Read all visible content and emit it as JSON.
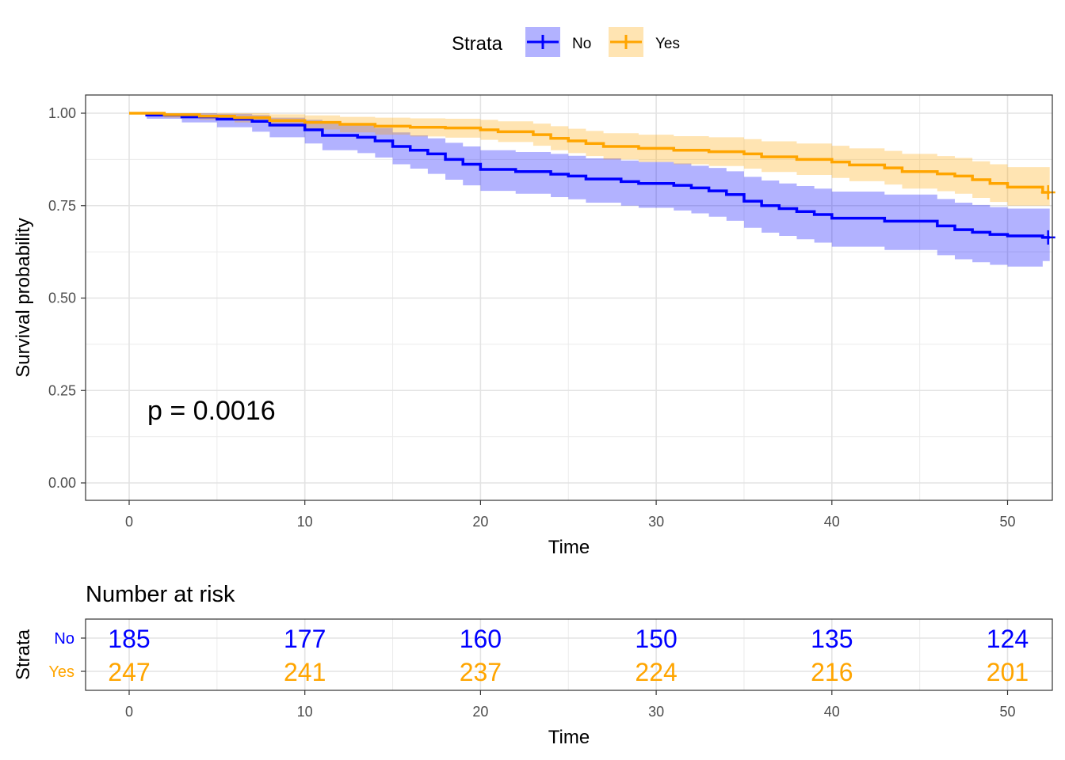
{
  "legend": {
    "title": "Strata",
    "items": [
      {
        "label": "No",
        "color": "#0000FF"
      },
      {
        "label": "Yes",
        "color": "#FFA500"
      }
    ]
  },
  "chart_data": [
    {
      "type": "line",
      "subtype": "kaplan-meier",
      "xlabel": "Time",
      "ylabel": "Survival probability",
      "xlim": [
        0,
        52
      ],
      "ylim": [
        0,
        1
      ],
      "xticks": [
        0,
        10,
        20,
        30,
        40,
        50
      ],
      "yticks": [
        "0.00",
        "0.25",
        "0.50",
        "0.75",
        "1.00"
      ],
      "grid": true,
      "annotation": "p = 0.0016",
      "series": [
        {
          "name": "No",
          "color": "#0000FF",
          "fill": "#0000FF",
          "steps": [
            [
              0,
              1.0
            ],
            [
              1,
              0.995
            ],
            [
              3,
              0.99
            ],
            [
              5,
              0.984
            ],
            [
              7,
              0.978
            ],
            [
              8,
              0.968
            ],
            [
              10,
              0.955
            ],
            [
              11,
              0.94
            ],
            [
              13,
              0.935
            ],
            [
              14,
              0.925
            ],
            [
              15,
              0.91
            ],
            [
              16,
              0.9
            ],
            [
              17,
              0.89
            ],
            [
              18,
              0.875
            ],
            [
              19,
              0.862
            ],
            [
              20,
              0.848
            ],
            [
              22,
              0.842
            ],
            [
              24,
              0.835
            ],
            [
              25,
              0.83
            ],
            [
              26,
              0.822
            ],
            [
              28,
              0.815
            ],
            [
              29,
              0.81
            ],
            [
              31,
              0.805
            ],
            [
              32,
              0.798
            ],
            [
              33,
              0.79
            ],
            [
              34,
              0.78
            ],
            [
              35,
              0.762
            ],
            [
              36,
              0.75
            ],
            [
              37,
              0.742
            ],
            [
              38,
              0.734
            ],
            [
              39,
              0.726
            ],
            [
              40,
              0.716
            ],
            [
              43,
              0.708
            ],
            [
              46,
              0.695
            ],
            [
              47,
              0.685
            ],
            [
              48,
              0.678
            ],
            [
              49,
              0.672
            ],
            [
              50,
              0.668
            ],
            [
              52,
              0.664
            ]
          ],
          "lower": [
            [
              0,
              1.0
            ],
            [
              1,
              0.985
            ],
            [
              3,
              0.975
            ],
            [
              5,
              0.962
            ],
            [
              7,
              0.95
            ],
            [
              8,
              0.935
            ],
            [
              10,
              0.918
            ],
            [
              11,
              0.9
            ],
            [
              13,
              0.892
            ],
            [
              14,
              0.88
            ],
            [
              15,
              0.862
            ],
            [
              16,
              0.85
            ],
            [
              17,
              0.836
            ],
            [
              18,
              0.82
            ],
            [
              19,
              0.805
            ],
            [
              20,
              0.79
            ],
            [
              22,
              0.782
            ],
            [
              24,
              0.773
            ],
            [
              25,
              0.767
            ],
            [
              26,
              0.758
            ],
            [
              28,
              0.75
            ],
            [
              29,
              0.744
            ],
            [
              31,
              0.737
            ],
            [
              32,
              0.729
            ],
            [
              33,
              0.72
            ],
            [
              34,
              0.709
            ],
            [
              35,
              0.69
            ],
            [
              36,
              0.677
            ],
            [
              37,
              0.668
            ],
            [
              38,
              0.659
            ],
            [
              39,
              0.65
            ],
            [
              40,
              0.639
            ],
            [
              43,
              0.63
            ],
            [
              46,
              0.616
            ],
            [
              47,
              0.605
            ],
            [
              48,
              0.597
            ],
            [
              49,
              0.59
            ],
            [
              50,
              0.585
            ],
            [
              52,
              0.6
            ]
          ],
          "upper": [
            [
              0,
              1.0
            ],
            [
              1,
              1.0
            ],
            [
              3,
              1.0
            ],
            [
              5,
              0.998
            ],
            [
              7,
              0.995
            ],
            [
              8,
              0.988
            ],
            [
              10,
              0.982
            ],
            [
              11,
              0.972
            ],
            [
              13,
              0.968
            ],
            [
              14,
              0.96
            ],
            [
              15,
              0.948
            ],
            [
              16,
              0.94
            ],
            [
              17,
              0.932
            ],
            [
              18,
              0.92
            ],
            [
              19,
              0.91
            ],
            [
              20,
              0.9
            ],
            [
              22,
              0.895
            ],
            [
              24,
              0.89
            ],
            [
              25,
              0.885
            ],
            [
              26,
              0.878
            ],
            [
              28,
              0.872
            ],
            [
              29,
              0.868
            ],
            [
              31,
              0.864
            ],
            [
              32,
              0.858
            ],
            [
              33,
              0.852
            ],
            [
              34,
              0.843
            ],
            [
              35,
              0.828
            ],
            [
              36,
              0.818
            ],
            [
              37,
              0.81
            ],
            [
              38,
              0.803
            ],
            [
              39,
              0.796
            ],
            [
              40,
              0.788
            ],
            [
              43,
              0.78
            ],
            [
              46,
              0.768
            ],
            [
              47,
              0.758
            ],
            [
              48,
              0.752
            ],
            [
              49,
              0.746
            ],
            [
              50,
              0.742
            ],
            [
              52,
              0.742
            ]
          ]
        },
        {
          "name": "Yes",
          "color": "#FFA500",
          "fill": "#FFA500",
          "steps": [
            [
              0,
              1.0
            ],
            [
              2,
              0.996
            ],
            [
              4,
              0.992
            ],
            [
              6,
              0.988
            ],
            [
              8,
              0.98
            ],
            [
              10,
              0.975
            ],
            [
              12,
              0.97
            ],
            [
              14,
              0.965
            ],
            [
              16,
              0.962
            ],
            [
              18,
              0.96
            ],
            [
              20,
              0.955
            ],
            [
              21,
              0.95
            ],
            [
              23,
              0.942
            ],
            [
              24,
              0.932
            ],
            [
              25,
              0.925
            ],
            [
              26,
              0.918
            ],
            [
              27,
              0.91
            ],
            [
              29,
              0.905
            ],
            [
              31,
              0.9
            ],
            [
              33,
              0.896
            ],
            [
              35,
              0.89
            ],
            [
              36,
              0.882
            ],
            [
              38,
              0.875
            ],
            [
              40,
              0.868
            ],
            [
              41,
              0.86
            ],
            [
              43,
              0.852
            ],
            [
              44,
              0.842
            ],
            [
              46,
              0.836
            ],
            [
              47,
              0.83
            ],
            [
              48,
              0.82
            ],
            [
              49,
              0.81
            ],
            [
              50,
              0.8
            ],
            [
              52,
              0.786
            ]
          ],
          "lower": [
            [
              0,
              1.0
            ],
            [
              2,
              0.988
            ],
            [
              4,
              0.982
            ],
            [
              6,
              0.975
            ],
            [
              8,
              0.963
            ],
            [
              10,
              0.956
            ],
            [
              12,
              0.948
            ],
            [
              14,
              0.942
            ],
            [
              16,
              0.937
            ],
            [
              18,
              0.934
            ],
            [
              20,
              0.928
            ],
            [
              21,
              0.922
            ],
            [
              23,
              0.912
            ],
            [
              24,
              0.9
            ],
            [
              25,
              0.892
            ],
            [
              26,
              0.884
            ],
            [
              27,
              0.875
            ],
            [
              29,
              0.868
            ],
            [
              31,
              0.862
            ],
            [
              33,
              0.857
            ],
            [
              35,
              0.85
            ],
            [
              36,
              0.841
            ],
            [
              38,
              0.833
            ],
            [
              40,
              0.825
            ],
            [
              41,
              0.816
            ],
            [
              43,
              0.807
            ],
            [
              44,
              0.796
            ],
            [
              46,
              0.789
            ],
            [
              47,
              0.782
            ],
            [
              48,
              0.771
            ],
            [
              49,
              0.76
            ],
            [
              50,
              0.75
            ],
            [
              52,
              0.75
            ]
          ],
          "upper": [
            [
              0,
              1.0
            ],
            [
              2,
              1.0
            ],
            [
              4,
              1.0
            ],
            [
              6,
              1.0
            ],
            [
              8,
              0.997
            ],
            [
              10,
              0.994
            ],
            [
              12,
              0.99
            ],
            [
              14,
              0.988
            ],
            [
              16,
              0.986
            ],
            [
              18,
              0.985
            ],
            [
              20,
              0.982
            ],
            [
              21,
              0.978
            ],
            [
              23,
              0.972
            ],
            [
              24,
              0.965
            ],
            [
              25,
              0.958
            ],
            [
              26,
              0.952
            ],
            [
              27,
              0.946
            ],
            [
              29,
              0.942
            ],
            [
              31,
              0.938
            ],
            [
              33,
              0.935
            ],
            [
              35,
              0.93
            ],
            [
              36,
              0.924
            ],
            [
              38,
              0.918
            ],
            [
              40,
              0.912
            ],
            [
              41,
              0.905
            ],
            [
              43,
              0.898
            ],
            [
              44,
              0.89
            ],
            [
              46,
              0.884
            ],
            [
              47,
              0.879
            ],
            [
              48,
              0.87
            ],
            [
              49,
              0.862
            ],
            [
              50,
              0.854
            ],
            [
              52,
              0.854
            ]
          ]
        }
      ]
    },
    {
      "type": "table",
      "title": "Number at risk",
      "xlabel": "Time",
      "ylabel": "Strata",
      "xlim": [
        0,
        52
      ],
      "xticks": [
        0,
        10,
        20,
        30,
        40,
        50
      ],
      "rows": [
        {
          "name": "No",
          "color": "#0000FF",
          "values": [
            185,
            177,
            160,
            150,
            135,
            124
          ]
        },
        {
          "name": "Yes",
          "color": "#FFA500",
          "values": [
            247,
            241,
            237,
            224,
            216,
            201
          ]
        }
      ]
    }
  ]
}
